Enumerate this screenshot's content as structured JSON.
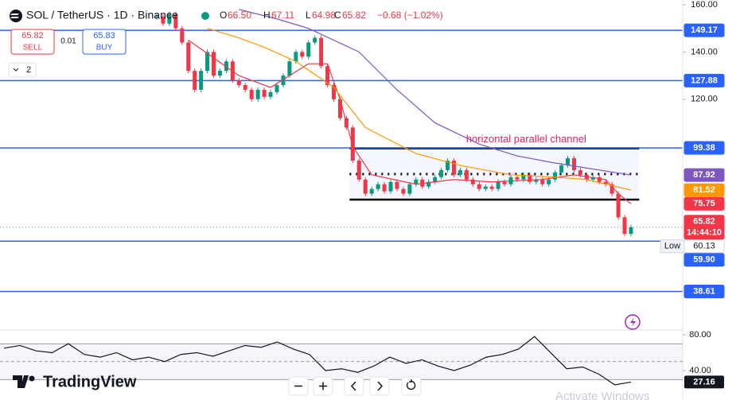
{
  "header": {
    "symbol": "SOL / TetherUS · 1D · Binance",
    "o_label": "O",
    "o": "66.50",
    "h_label": "H",
    "h": "67.11",
    "l_label": "L",
    "l": "64.98",
    "c_label": "C",
    "c": "65.82",
    "change": "−0.68 (−1.02%)"
  },
  "trade": {
    "sell_price": "65.82",
    "sell": "SELL",
    "spread": "0.01",
    "buy_price": "65.83",
    "buy": "BUY"
  },
  "indicators_count": "2",
  "branding": "TradingView",
  "watermark": "Activate Windows",
  "chart_data": [
    {
      "type": "candlestick",
      "colors": {
        "up": "#089981",
        "down": "#f23645"
      },
      "values": [
        155,
        152,
        156,
        150,
        144,
        132,
        124,
        132,
        140,
        130,
        132,
        136,
        128,
        126,
        124,
        120,
        124,
        121,
        123,
        126,
        130,
        136,
        140,
        138,
        144,
        146,
        134,
        126,
        120,
        112,
        108,
        94,
        86,
        80,
        82,
        84,
        81,
        85,
        82,
        80,
        84,
        86,
        83,
        85,
        87,
        90,
        94,
        88,
        90,
        86,
        84,
        82,
        83,
        82,
        85,
        84,
        87,
        86,
        88,
        85,
        86,
        84,
        86,
        89,
        92,
        95,
        90,
        88,
        86,
        87,
        85,
        84,
        80,
        70,
        63,
        65.82
      ],
      "ylim": [
        22.3,
        162
      ],
      "yticks": [
        {
          "value": 160,
          "label": "160.00"
        },
        {
          "value": 140,
          "label": "140.00"
        },
        {
          "value": 120,
          "label": "120.00"
        }
      ],
      "moving_averages": [
        {
          "color": "#f23645",
          "x": [
            5,
            13,
            18,
            24,
            27,
            29,
            31,
            34,
            41,
            47,
            53,
            61,
            66,
            71,
            73,
            75
          ],
          "values": [
            145,
            130,
            125,
            135,
            135,
            120,
            100,
            88,
            84,
            86,
            85,
            86,
            88,
            86,
            80,
            75.75
          ]
        },
        {
          "color": "#ff9800",
          "x": [
            8,
            13,
            17,
            22,
            28,
            33,
            41,
            48,
            56,
            63,
            68,
            75
          ],
          "values": [
            150,
            146,
            142,
            136,
            125,
            108,
            97,
            92,
            88,
            87,
            86,
            81.52
          ]
        },
        {
          "color": "#7e57c2",
          "x": [
            13,
            19,
            24,
            32,
            38,
            44,
            51,
            57,
            63,
            70,
            75
          ],
          "values": [
            158,
            154,
            150,
            140,
            124,
            110,
            101,
            96,
            93,
            90,
            87.92
          ]
        }
      ],
      "levels_color": "#2962ff",
      "levels": [
        149.17,
        127.88,
        99.38,
        {
          "value": 59.9,
          "label": "59.90"
        },
        38.61
      ],
      "price_labels": [
        {
          "value": 87.92,
          "color": "#7e57c2"
        },
        {
          "value": 81.52,
          "color": "#ff9800"
        },
        {
          "value": 75.75,
          "color": "#f23645"
        }
      ],
      "last_price": {
        "value": 65.82,
        "countdown": "14:44:10",
        "color": "#f23645"
      },
      "low": {
        "label": "Low",
        "value": 60.13
      },
      "channel": {
        "start": 30.5,
        "end": 76.3,
        "top": 99.2,
        "middle": 88.3,
        "bottom": 77.5,
        "color": "#000000",
        "annotation": "horizontal parallel channel",
        "annotation_color": "#e91e63"
      }
    },
    {
      "type": "line",
      "color": "#131722",
      "values": [
        65,
        68,
        62,
        60,
        70,
        58,
        55,
        60,
        52,
        55,
        50,
        58,
        60,
        56,
        62,
        68,
        66,
        72,
        64,
        58,
        40,
        42,
        38,
        45,
        55,
        48,
        52,
        45,
        40,
        46,
        55,
        58,
        64,
        78,
        60,
        42,
        44,
        36,
        24,
        27.16
      ],
      "ylim": [
        7.1,
        85.3
      ],
      "yticks": [
        {
          "value": 80,
          "label": "80.00"
        },
        {
          "value": 40,
          "label": "40.00"
        }
      ],
      "bands": [
        70,
        30
      ],
      "middle": 50,
      "last": 27.16
    }
  ]
}
